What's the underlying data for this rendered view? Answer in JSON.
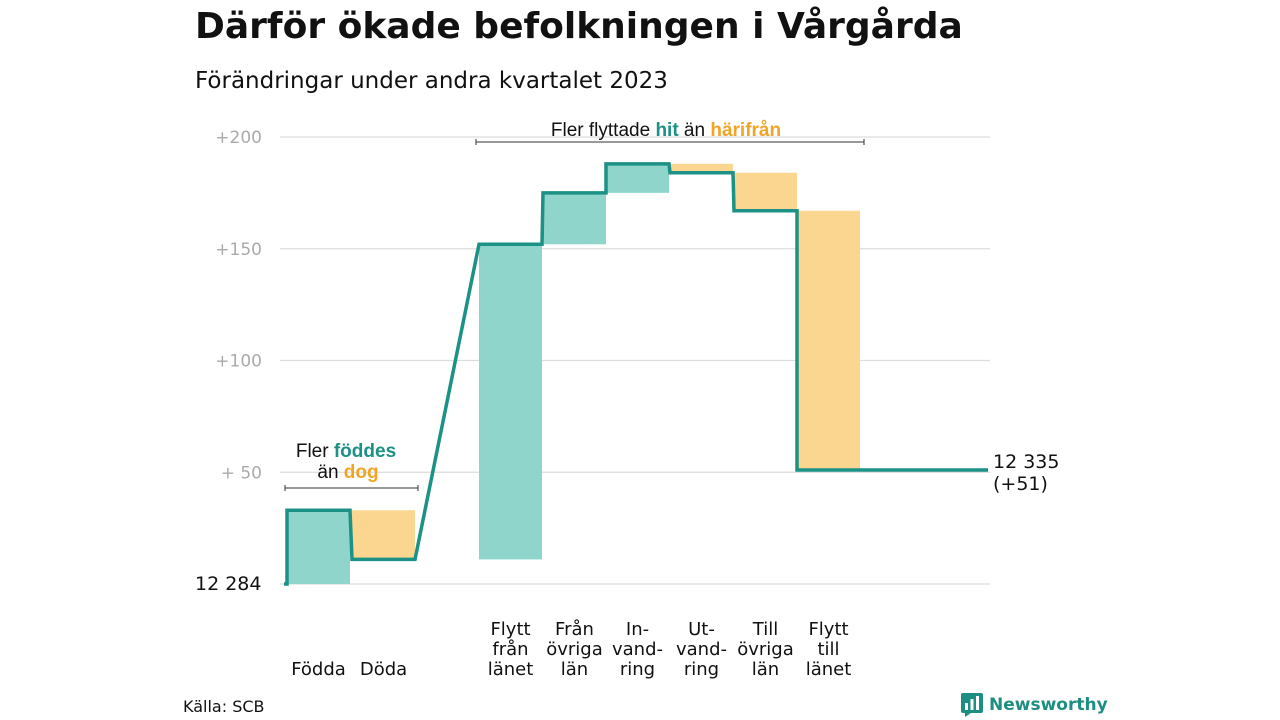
{
  "title": "Därför ökade befolkningen i Vårgårda",
  "subtitle": "Förändringar under andra kvartalet 2023",
  "source": "Källa: SCB",
  "brand": "Newsworthy",
  "colors": {
    "increase_fill": "#8fd5cb",
    "decrease_fill": "#fad690",
    "line": "#1c9185",
    "teal_text": "#1c9185",
    "orange_text": "#f2a425",
    "grid": "#dddddd",
    "tick_text": "#aaaaaa"
  },
  "annotations": {
    "births": {
      "pre": "Fler",
      "hi1": "föddes",
      "mid": "än",
      "hi2": "dog"
    },
    "migration": {
      "pre": "Fler flyttade",
      "hi1": "hit",
      "mid": "än",
      "hi2": "härifrån"
    }
  },
  "chart_data": {
    "type": "waterfall",
    "start_label": "12 284",
    "end_label": [
      "12 335",
      "(+51)"
    ],
    "y_ticks": [
      {
        "value": 0,
        "label": ""
      },
      {
        "value": 50,
        "label": "+  50"
      },
      {
        "value": 100,
        "label": "+100"
      },
      {
        "value": 150,
        "label": "+150"
      },
      {
        "value": 200,
        "label": "+200"
      }
    ],
    "ylim": [
      0,
      200
    ],
    "bars": [
      {
        "label": [
          "Födda"
        ],
        "change": 33,
        "start": 0,
        "end": 33
      },
      {
        "label": [
          "Döda"
        ],
        "change": -22,
        "start": 33,
        "end": 11
      },
      {
        "label": [
          "Flytt",
          "från",
          "länet"
        ],
        "change": 141,
        "start": 11,
        "end": 152
      },
      {
        "label": [
          "Från",
          "övriga",
          "län"
        ],
        "change": 23,
        "start": 152,
        "end": 175
      },
      {
        "label": [
          "In-",
          "vand-",
          "ring"
        ],
        "change": 13,
        "start": 175,
        "end": 188
      },
      {
        "label": [
          "Ut-",
          "vand-",
          "ring"
        ],
        "change": -4,
        "start": 188,
        "end": 184
      },
      {
        "label": [
          "Till",
          "övriga",
          "län"
        ],
        "change": -17,
        "start": 184,
        "end": 167
      },
      {
        "label": [
          "Flytt",
          "till",
          "länet"
        ],
        "change": -116,
        "start": 167,
        "end": 51
      }
    ],
    "net_change": 51,
    "grid": true
  }
}
